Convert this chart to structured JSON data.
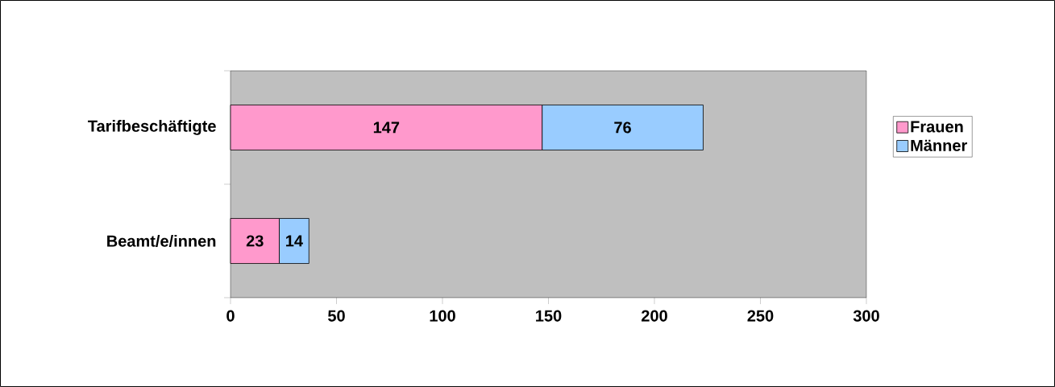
{
  "chart_data": {
    "type": "bar",
    "orientation": "horizontal",
    "stacked": true,
    "categories": [
      "Tarifbeschäftigte",
      "Beamt/e/innen"
    ],
    "series": [
      {
        "name": "Frauen",
        "color": "#ff99cc",
        "values": [
          147,
          23
        ]
      },
      {
        "name": "Männer",
        "color": "#99ccff",
        "values": [
          76,
          14
        ]
      }
    ],
    "xlim": [
      0,
      300
    ],
    "xticks": [
      0,
      50,
      100,
      150,
      200,
      250,
      300
    ],
    "data_labels": true,
    "legend": "right",
    "grid": false
  }
}
